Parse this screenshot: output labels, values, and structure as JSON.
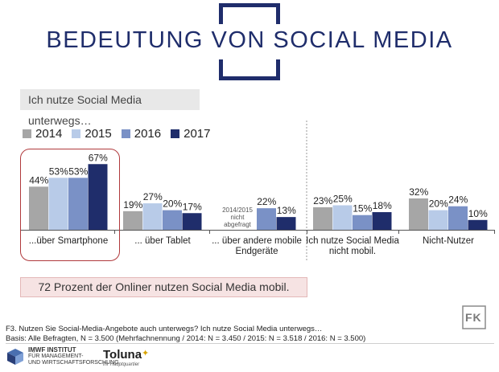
{
  "header": {
    "title": "BEDEUTUNG VON SOCIAL MEDIA"
  },
  "question_box": "Ich nutze Social Media unterwegs…",
  "callout": "72 Prozent der Onliner nutzen Social Media mobil.",
  "footnote": {
    "line1": "F3. Nutzen Sie Social-Media-Angebote auch unterwegs? Ich nutze Social Media unterwegs…",
    "line2": "Basis: Alle Befragten, N = 3.500 (Mehrfachnennung / 2014: N = 3.450 / 2015: N = 3.518 / 2016: N = 3.500)"
  },
  "logos": {
    "imwf_line1": "IMWF INSTITUT",
    "imwf_line2": "FÜR MANAGEMENT-",
    "imwf_line3": "UND WIRTSCHAFTSFORSCHUNG",
    "toluna": "Toluna",
    "toluna_tagline": "Ihr Hauptquartier",
    "fk": "FK"
  },
  "chart_data": {
    "type": "bar",
    "categories": [
      "...über Smartphone",
      "... über Tablet",
      "... über andere mobile Endgeräte",
      "Ich nutze Social Media nicht mobil.",
      "Nicht-Nutzer"
    ],
    "category_lines": [
      [
        "...über Smartphone"
      ],
      [
        "... über Tablet"
      ],
      [
        "... über andere mobile",
        "Endgeräte"
      ],
      [
        "Ich nutze Social Media",
        "nicht mobil."
      ],
      [
        "Nicht-Nutzer"
      ]
    ],
    "series": [
      {
        "name": "2014",
        "color": "#a6a6a6",
        "values": [
          44,
          19,
          null,
          23,
          32
        ]
      },
      {
        "name": "2015",
        "color": "#b8cbe8",
        "values": [
          53,
          27,
          null,
          25,
          20
        ]
      },
      {
        "name": "2016",
        "color": "#7a91c6",
        "values": [
          53,
          20,
          22,
          15,
          24
        ]
      },
      {
        "name": "2017",
        "color": "#1f2d6b",
        "values": [
          67,
          17,
          13,
          18,
          10
        ]
      }
    ],
    "value_labels": [
      [
        "44%",
        "53%",
        "53%",
        "67%"
      ],
      [
        "19%",
        "27%",
        "20%",
        "17%"
      ],
      [
        "",
        "",
        "22%",
        "13%"
      ],
      [
        "23%",
        "25%",
        "15%",
        "18%"
      ],
      [
        "32%",
        "20%",
        "24%",
        "10%"
      ]
    ],
    "note_not_queried": [
      "2014/2015",
      "nicht",
      "abgefragt"
    ],
    "ylim": [
      0,
      80
    ],
    "highlighted_category": "...über Smartphone"
  }
}
